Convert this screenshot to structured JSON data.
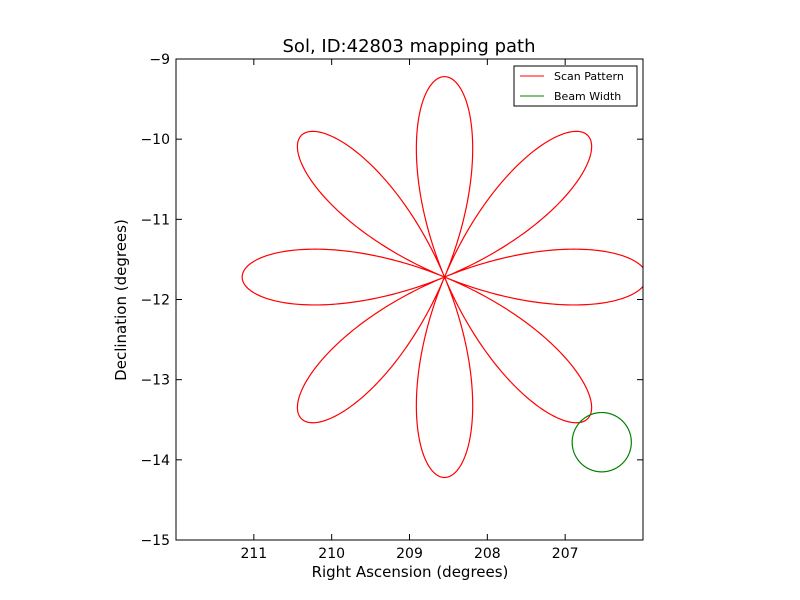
{
  "chart_data": {
    "type": "line",
    "title": "Sol, ID:42803 mapping path",
    "xlabel": "Right Ascension (degrees)",
    "ylabel": "Declination (degrees)",
    "xlim": [
      212.0,
      206.0
    ],
    "ylim": [
      -15.0,
      -9.0
    ],
    "x_ticks": [
      211,
      210,
      209,
      208,
      207
    ],
    "y_ticks": [
      -9,
      -10,
      -11,
      -12,
      -13,
      -14,
      -15
    ],
    "x_tick_labels": [
      "211",
      "210",
      "209",
      "208",
      "207"
    ],
    "y_tick_labels": [
      "−9",
      "−10",
      "−11",
      "−12",
      "−13",
      "−14",
      "−15"
    ],
    "grid": false,
    "legend_position": "top-right",
    "series": [
      {
        "name": "Scan Pattern",
        "kind": "rose",
        "color": "#ff0000",
        "center": [
          208.55,
          -11.72
        ],
        "petals": 8,
        "radius_x": 2.6,
        "radius_y": 2.5
      },
      {
        "name": "Beam Width",
        "kind": "circle",
        "color": "#008000",
        "center": [
          206.53,
          -13.78
        ],
        "radius_x": 0.38,
        "radius_y": 0.37
      }
    ]
  }
}
